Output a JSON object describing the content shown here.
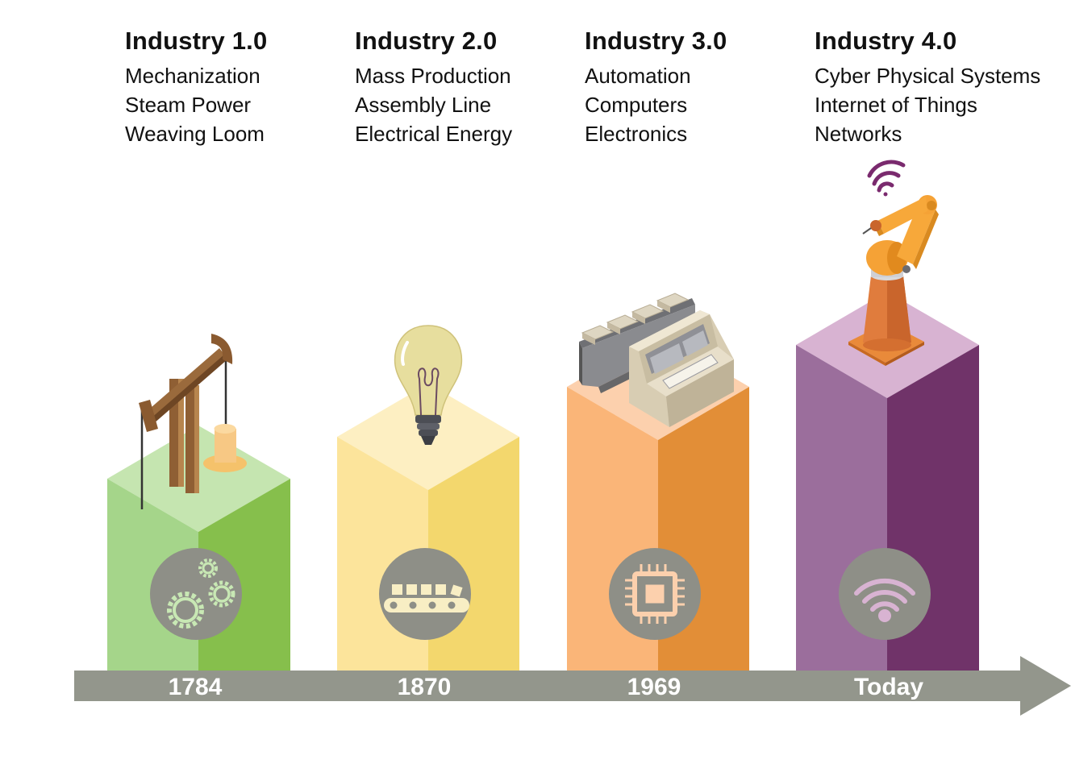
{
  "stages": [
    {
      "title": "Industry 1.0",
      "lines": [
        "Mechanization",
        "Steam Power",
        "Weaving Loom"
      ],
      "year": "1784",
      "colors": {
        "top": "#c5e5b0",
        "left": "#a5d58a",
        "right": "#86bf4c"
      },
      "badge_icon": "gears-icon",
      "top_icon": "pump-jack-icon"
    },
    {
      "title": "Industry 2.0",
      "lines": [
        "Mass Production",
        "Assembly Line",
        "Electrical Energy"
      ],
      "year": "1870",
      "colors": {
        "top": "#fdefc2",
        "left": "#fce49b",
        "right": "#f3d76d"
      },
      "badge_icon": "conveyor-belt-icon",
      "top_icon": "light-bulb-icon"
    },
    {
      "title": "Industry 3.0",
      "lines": [
        "Automation",
        "Computers",
        "Electronics"
      ],
      "year": "1969",
      "colors": {
        "top": "#fcd0ad",
        "left": "#fab578",
        "right": "#e28e37"
      },
      "badge_icon": "chip-icon",
      "top_icon": "computer-console-icon"
    },
    {
      "title": "Industry 4.0",
      "lines": [
        "Cyber Physical Systems",
        "Internet of Things",
        "Networks"
      ],
      "year": "Today",
      "colors": {
        "top": "#d8b3d2",
        "left": "#9b6e9c",
        "right": "#703369"
      },
      "badge_icon": "wifi-icon",
      "top_icon": "robot-arm-icon"
    }
  ],
  "timeline": {
    "color": "#93968c"
  },
  "badge": {
    "fill": "#8e8f87"
  }
}
